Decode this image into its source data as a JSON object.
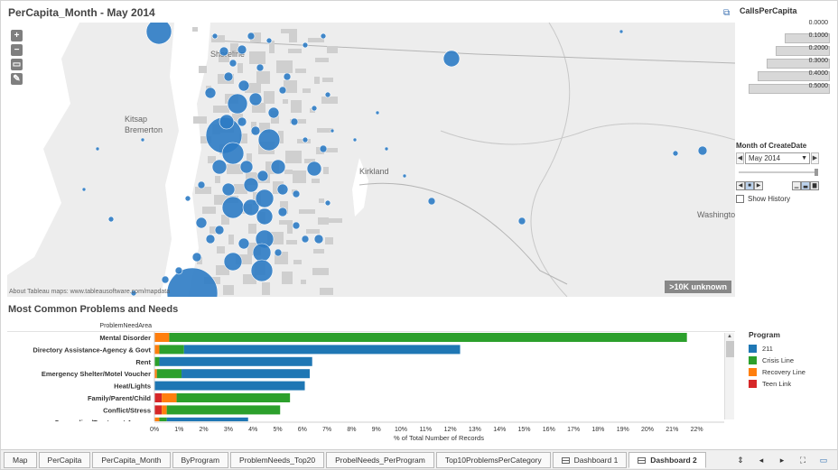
{
  "map": {
    "title": "PerCapita_Month - May 2014",
    "attribution": "About Tableau maps: www.tableausoftware.com/mapdata",
    "unknown_badge": ">10K unknown",
    "place_labels": [
      "Kitsap",
      "Bremerton",
      "Shoreline",
      "Kirkland",
      "Washington"
    ],
    "controls": [
      {
        "name": "zoom-in",
        "glyph": "+"
      },
      {
        "name": "zoom-out",
        "glyph": "−"
      },
      {
        "name": "zoom-area",
        "glyph": "▭"
      },
      {
        "name": "pin",
        "glyph": "✎"
      }
    ],
    "mark_color": "#2c7bc4"
  },
  "size_legend": {
    "title": "CallsPerCapita",
    "entries": [
      "0.0000",
      "0.1000",
      "0.2000",
      "0.3000",
      "0.4000",
      "0.5000"
    ]
  },
  "month_filter": {
    "title": "Month of CreateDate",
    "value": "May 2014",
    "show_history_label": "Show History"
  },
  "problems_chart": {
    "section_title": "Most Common Problems and Needs",
    "dimension_header": "ProblemNeedArea",
    "axis_title": "% of Total Number of Records"
  },
  "program_legend": {
    "title": "Program",
    "items": [
      {
        "label": "211",
        "color": "#1f77b4"
      },
      {
        "label": "Crisis Line",
        "color": "#2ca02c"
      },
      {
        "label": "Recovery Line",
        "color": "#ff7f0e"
      },
      {
        "label": "Teen Link",
        "color": "#d62728"
      }
    ]
  },
  "chart_data": {
    "type": "bar",
    "orientation": "horizontal",
    "stacked": true,
    "categories": [
      "Mental Disorder",
      "Directory Assistance-Agency & Govt",
      "Rent",
      "Emergency Shelter/Motel Voucher",
      "Heat/Lights",
      "Family/Parent/Child",
      "Conflict/Stress",
      "Counseling/Treatment Access"
    ],
    "series": [
      {
        "name": "Teen Link",
        "color": "#d62728",
        "values": [
          0.0,
          0.0,
          0.0,
          0.0,
          0.0,
          0.3,
          0.3,
          0.0
        ]
      },
      {
        "name": "Recovery Line",
        "color": "#ff7f0e",
        "values": [
          0.6,
          0.2,
          0.0,
          0.1,
          0.0,
          0.6,
          0.2,
          0.2
        ]
      },
      {
        "name": "Crisis Line",
        "color": "#2ca02c",
        "values": [
          21.0,
          1.0,
          0.2,
          1.0,
          0.0,
          4.6,
          4.6,
          0.3
        ]
      },
      {
        "name": "211",
        "color": "#1f77b4",
        "values": [
          0.0,
          11.2,
          6.2,
          5.2,
          6.1,
          0.0,
          0.0,
          3.3
        ]
      }
    ],
    "x_ticks": [
      "0%",
      "1%",
      "2%",
      "3%",
      "4%",
      "5%",
      "6%",
      "7%",
      "8%",
      "9%",
      "10%",
      "11%",
      "12%",
      "13%",
      "14%",
      "15%",
      "16%",
      "17%",
      "18%",
      "19%",
      "20%",
      "21%",
      "22%"
    ],
    "xlabel": "% of Total Number of Records",
    "xlim": [
      0,
      22.5
    ],
    "grid": false
  },
  "tabs": [
    {
      "label": "Map",
      "icon": null,
      "active": false
    },
    {
      "label": "PerCapita",
      "icon": null,
      "active": false
    },
    {
      "label": "PerCapita_Month",
      "icon": null,
      "active": false
    },
    {
      "label": "ByProgram",
      "icon": null,
      "active": false
    },
    {
      "label": "ProblemNeeds_Top20",
      "icon": null,
      "active": false
    },
    {
      "label": "ProbelNeeds_PerProgram",
      "icon": null,
      "active": false
    },
    {
      "label": "Top10ProblemsPerCategory",
      "icon": null,
      "active": false
    },
    {
      "label": "Dashboard 1",
      "icon": "dashboard-icon",
      "active": false
    },
    {
      "label": "Dashboard 2",
      "icon": "dashboard-icon",
      "active": true
    }
  ]
}
